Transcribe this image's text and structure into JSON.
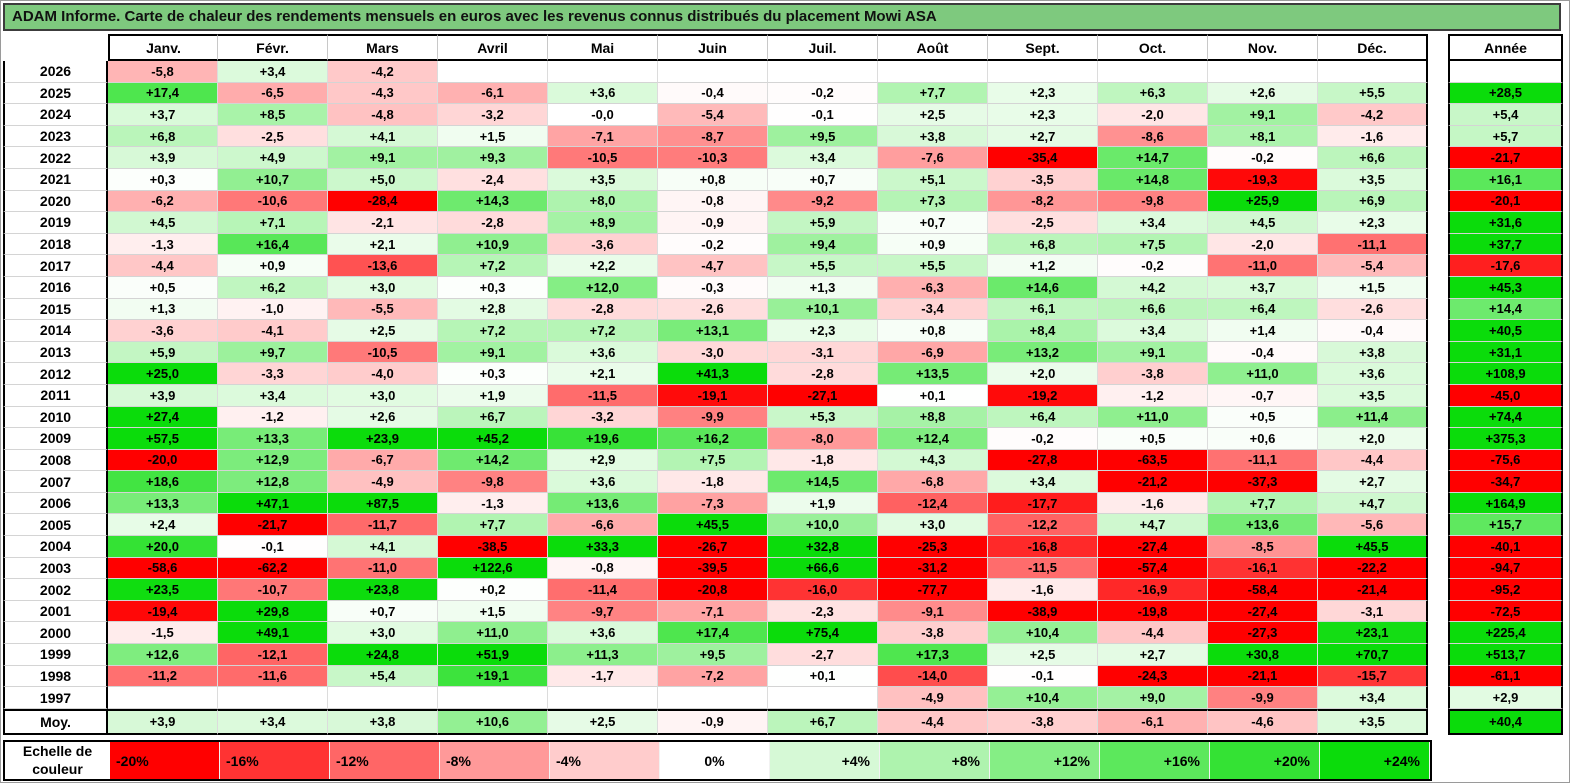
{
  "chart_data": {
    "type": "heatmap",
    "title": "ADAM Informe. Carte de chaleur des rendements mensuels en euros avec les revenus connus distribués du placement Mowi ASA",
    "x_labels": [
      "Janv.",
      "Févr.",
      "Mars",
      "Avril",
      "Mai",
      "Juin",
      "Juil.",
      "Août",
      "Sept.",
      "Oct.",
      "Nov.",
      "Déc."
    ],
    "annual_column_label": "Année",
    "rows": [
      {
        "year": "2026",
        "monthly": [
          "-5,8",
          "+3,4",
          "-4,2",
          null,
          null,
          null,
          null,
          null,
          null,
          null,
          null,
          null
        ],
        "annual": null
      },
      {
        "year": "2025",
        "monthly": [
          "+17,4",
          "-6,5",
          "-4,3",
          "-6,1",
          "+3,6",
          "-0,4",
          "-0,2",
          "+7,7",
          "+2,3",
          "+6,3",
          "+2,6",
          "+5,5"
        ],
        "annual": "+28,5"
      },
      {
        "year": "2024",
        "monthly": [
          "+3,7",
          "+8,5",
          "-4,8",
          "-3,2",
          "-0,0",
          "-5,4",
          "-0,1",
          "+2,5",
          "+2,3",
          "-2,0",
          "+9,1",
          "-4,2"
        ],
        "annual": "+5,4"
      },
      {
        "year": "2023",
        "monthly": [
          "+6,8",
          "-2,5",
          "+4,1",
          "+1,5",
          "-7,1",
          "-8,7",
          "+9,5",
          "+3,8",
          "+2,7",
          "-8,6",
          "+8,1",
          "-1,6"
        ],
        "annual": "+5,7"
      },
      {
        "year": "2022",
        "monthly": [
          "+3,9",
          "+4,9",
          "+9,1",
          "+9,3",
          "-10,5",
          "-10,3",
          "+3,4",
          "-7,6",
          "-35,4",
          "+14,7",
          "-0,2",
          "+6,6"
        ],
        "annual": "-21,7"
      },
      {
        "year": "2021",
        "monthly": [
          "+0,3",
          "+10,7",
          "+5,0",
          "-2,4",
          "+3,5",
          "+0,8",
          "+0,7",
          "+5,1",
          "-3,5",
          "+14,8",
          "-19,3",
          "+3,5"
        ],
        "annual": "+16,1"
      },
      {
        "year": "2020",
        "monthly": [
          "-6,2",
          "-10,6",
          "-28,4",
          "+14,3",
          "+8,0",
          "-0,8",
          "-9,2",
          "+7,3",
          "-8,2",
          "-9,8",
          "+25,9",
          "+6,9"
        ],
        "annual": "-20,1"
      },
      {
        "year": "2019",
        "monthly": [
          "+4,5",
          "+7,1",
          "-2,1",
          "-2,8",
          "+8,9",
          "-0,9",
          "+5,9",
          "+0,7",
          "-2,5",
          "+3,4",
          "+4,5",
          "+2,3"
        ],
        "annual": "+31,6"
      },
      {
        "year": "2018",
        "monthly": [
          "-1,3",
          "+16,4",
          "+2,1",
          "+10,9",
          "-3,6",
          "-0,2",
          "+9,4",
          "+0,9",
          "+6,8",
          "+7,5",
          "-2,0",
          "-11,1"
        ],
        "annual": "+37,7"
      },
      {
        "year": "2017",
        "monthly": [
          "-4,4",
          "+0,9",
          "-13,6",
          "+7,2",
          "+2,2",
          "-4,7",
          "+5,5",
          "+5,5",
          "+1,2",
          "-0,2",
          "-11,0",
          "-5,4"
        ],
        "annual": "-17,6"
      },
      {
        "year": "2016",
        "monthly": [
          "+0,5",
          "+6,2",
          "+3,0",
          "+0,3",
          "+12,0",
          "-0,3",
          "+1,3",
          "-6,3",
          "+14,6",
          "+4,2",
          "+3,7",
          "+1,5"
        ],
        "annual": "+45,3"
      },
      {
        "year": "2015",
        "monthly": [
          "+1,3",
          "-1,0",
          "-5,5",
          "+2,8",
          "-2,8",
          "-2,6",
          "+10,1",
          "-3,4",
          "+6,1",
          "+6,6",
          "+6,4",
          "-2,6"
        ],
        "annual": "+14,4"
      },
      {
        "year": "2014",
        "monthly": [
          "-3,6",
          "-4,1",
          "+2,5",
          "+7,2",
          "+7,2",
          "+13,1",
          "+2,3",
          "+0,8",
          "+8,4",
          "+3,4",
          "+1,4",
          "-0,4"
        ],
        "annual": "+40,5"
      },
      {
        "year": "2013",
        "monthly": [
          "+5,9",
          "+9,7",
          "-10,5",
          "+9,1",
          "+3,6",
          "-3,0",
          "-3,1",
          "-6,9",
          "+13,2",
          "+9,1",
          "-0,4",
          "+3,8"
        ],
        "annual": "+31,1"
      },
      {
        "year": "2012",
        "monthly": [
          "+25,0",
          "-3,3",
          "-4,0",
          "+0,3",
          "+2,1",
          "+41,3",
          "-2,8",
          "+13,5",
          "+2,0",
          "-3,8",
          "+11,0",
          "+3,6"
        ],
        "annual": "+108,9"
      },
      {
        "year": "2011",
        "monthly": [
          "+3,9",
          "+3,4",
          "+3,0",
          "+1,9",
          "-11,5",
          "-19,1",
          "-27,1",
          "+0,1",
          "-19,2",
          "-1,2",
          "-0,7",
          "+3,5"
        ],
        "annual": "-45,0"
      },
      {
        "year": "2010",
        "monthly": [
          "+27,4",
          "-1,2",
          "+2,6",
          "+6,7",
          "-3,2",
          "-9,9",
          "+5,3",
          "+8,8",
          "+6,4",
          "+11,0",
          "+0,5",
          "+11,4"
        ],
        "annual": "+74,4"
      },
      {
        "year": "2009",
        "monthly": [
          "+57,5",
          "+13,3",
          "+23,9",
          "+45,2",
          "+19,6",
          "+16,2",
          "-8,0",
          "+12,4",
          "-0,2",
          "+0,5",
          "+0,6",
          "+2,0"
        ],
        "annual": "+375,3"
      },
      {
        "year": "2008",
        "monthly": [
          "-20,0",
          "+12,9",
          "-6,7",
          "+14,2",
          "+2,9",
          "+7,5",
          "-1,8",
          "+4,3",
          "-27,8",
          "-63,5",
          "-11,1",
          "-4,4"
        ],
        "annual": "-75,6"
      },
      {
        "year": "2007",
        "monthly": [
          "+18,6",
          "+12,8",
          "-4,9",
          "-9,8",
          "+3,6",
          "-1,8",
          "+14,5",
          "-6,8",
          "+3,4",
          "-21,2",
          "-37,3",
          "+2,7"
        ],
        "annual": "-34,7"
      },
      {
        "year": "2006",
        "monthly": [
          "+13,3",
          "+47,1",
          "+87,5",
          "-1,3",
          "+13,6",
          "-7,3",
          "+1,9",
          "-12,4",
          "-17,7",
          "-1,6",
          "+7,7",
          "+4,7"
        ],
        "annual": "+164,9"
      },
      {
        "year": "2005",
        "monthly": [
          "+2,4",
          "-21,7",
          "-11,7",
          "+7,7",
          "-6,6",
          "+45,5",
          "+10,0",
          "+3,0",
          "-12,2",
          "+4,7",
          "+13,6",
          "-5,6"
        ],
        "annual": "+15,7"
      },
      {
        "year": "2004",
        "monthly": [
          "+20,0",
          "-0,1",
          "+4,1",
          "-38,5",
          "+33,3",
          "-26,7",
          "+32,8",
          "-25,3",
          "-16,8",
          "-27,4",
          "-8,5",
          "+45,5"
        ],
        "annual": "-40,1"
      },
      {
        "year": "2003",
        "monthly": [
          "-58,6",
          "-62,2",
          "-11,0",
          "+122,6",
          "-0,8",
          "-39,5",
          "+66,6",
          "-31,2",
          "-11,5",
          "-57,4",
          "-16,1",
          "-22,2"
        ],
        "annual": "-94,7"
      },
      {
        "year": "2002",
        "monthly": [
          "+23,5",
          "-10,7",
          "+23,8",
          "+0,2",
          "-11,4",
          "-20,8",
          "-16,0",
          "-77,7",
          "-1,6",
          "-16,9",
          "-58,4",
          "-21,4"
        ],
        "annual": "-95,2"
      },
      {
        "year": "2001",
        "monthly": [
          "-19,4",
          "+29,8",
          "+0,7",
          "+1,5",
          "-9,7",
          "-7,1",
          "-2,3",
          "-9,1",
          "-38,9",
          "-19,8",
          "-27,4",
          "-3,1"
        ],
        "annual": "-72,5"
      },
      {
        "year": "2000",
        "monthly": [
          "-1,5",
          "+49,1",
          "+3,0",
          "+11,0",
          "+3,6",
          "+17,4",
          "+75,4",
          "-3,8",
          "+10,4",
          "-4,4",
          "-27,3",
          "+23,1"
        ],
        "annual": "+225,4"
      },
      {
        "year": "1999",
        "monthly": [
          "+12,6",
          "-12,1",
          "+24,8",
          "+51,9",
          "+11,3",
          "+9,5",
          "-2,7",
          "+17,3",
          "+2,5",
          "+2,7",
          "+30,8",
          "+70,7"
        ],
        "annual": "+513,7"
      },
      {
        "year": "1998",
        "monthly": [
          "-11,2",
          "-11,6",
          "+5,4",
          "+19,1",
          "-1,7",
          "-7,2",
          "+0,1",
          "-14,0",
          "-0,1",
          "-24,3",
          "-21,1",
          "-15,7"
        ],
        "annual": "-61,1"
      },
      {
        "year": "1997",
        "monthly": [
          null,
          null,
          null,
          null,
          null,
          null,
          null,
          "-4,9",
          "+10,4",
          "+9,0",
          "-9,9",
          "+3,4"
        ],
        "annual": "+2,9"
      }
    ],
    "average_row": {
      "label": "Moy.",
      "monthly": [
        "+3,9",
        "+3,4",
        "+3,8",
        "+10,6",
        "+2,5",
        "-0,9",
        "+6,7",
        "-4,4",
        "-3,8",
        "-6,1",
        "-4,6",
        "+3,5"
      ],
      "annual": "+40,4"
    },
    "legend": {
      "label": "Echelle de couleur",
      "stops": [
        "-20%",
        "-16%",
        "-12%",
        "-8%",
        "-4%",
        "0%",
        "+4%",
        "+8%",
        "+12%",
        "+16%",
        "+20%",
        "+24%"
      ]
    },
    "color_scale": {
      "negative_color": "#FF0000",
      "positive_color": "#0BDC0B",
      "neutral_color": "#FFFFFF",
      "negative_limit": -20,
      "positive_limit": 24
    },
    "colors": {
      "title_background": "#7EC97E",
      "title_text": "#111111",
      "border": "#000000"
    }
  }
}
